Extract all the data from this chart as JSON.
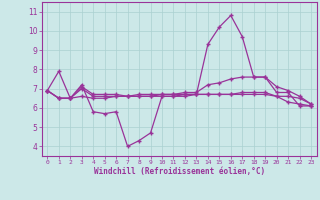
{
  "xlabel": "Windchill (Refroidissement éolien,°C)",
  "x": [
    0,
    1,
    2,
    3,
    4,
    5,
    6,
    7,
    8,
    9,
    10,
    11,
    12,
    13,
    14,
    15,
    16,
    17,
    18,
    19,
    20,
    21,
    22,
    23
  ],
  "line1": [
    6.9,
    7.9,
    6.5,
    7.2,
    5.8,
    5.7,
    5.8,
    4.0,
    4.3,
    4.7,
    6.6,
    6.6,
    6.7,
    6.7,
    9.3,
    10.2,
    10.8,
    9.7,
    7.6,
    7.6,
    6.8,
    6.8,
    6.1,
    6.1
  ],
  "line2": [
    6.9,
    6.5,
    6.5,
    6.6,
    6.5,
    6.5,
    6.6,
    6.6,
    6.6,
    6.6,
    6.7,
    6.7,
    6.7,
    6.7,
    6.7,
    6.7,
    6.7,
    6.7,
    6.7,
    6.7,
    6.6,
    6.6,
    6.5,
    6.2
  ],
  "line3": [
    6.9,
    6.5,
    6.5,
    7.0,
    6.6,
    6.6,
    6.6,
    6.6,
    6.7,
    6.7,
    6.7,
    6.7,
    6.8,
    6.8,
    7.2,
    7.3,
    7.5,
    7.6,
    7.6,
    7.6,
    7.1,
    6.9,
    6.6,
    6.2
  ],
  "line4": [
    6.9,
    6.5,
    6.5,
    7.1,
    6.7,
    6.7,
    6.7,
    6.6,
    6.6,
    6.6,
    6.6,
    6.6,
    6.6,
    6.7,
    6.7,
    6.7,
    6.7,
    6.8,
    6.8,
    6.8,
    6.6,
    6.3,
    6.2,
    6.1
  ],
  "line_color": "#993399",
  "bg_color": "#cce8e8",
  "grid_color": "#aad0d0",
  "ylim": [
    3.5,
    11.5
  ],
  "yticks": [
    4,
    5,
    6,
    7,
    8,
    9,
    10,
    11
  ],
  "xlim": [
    -0.5,
    23.5
  ]
}
